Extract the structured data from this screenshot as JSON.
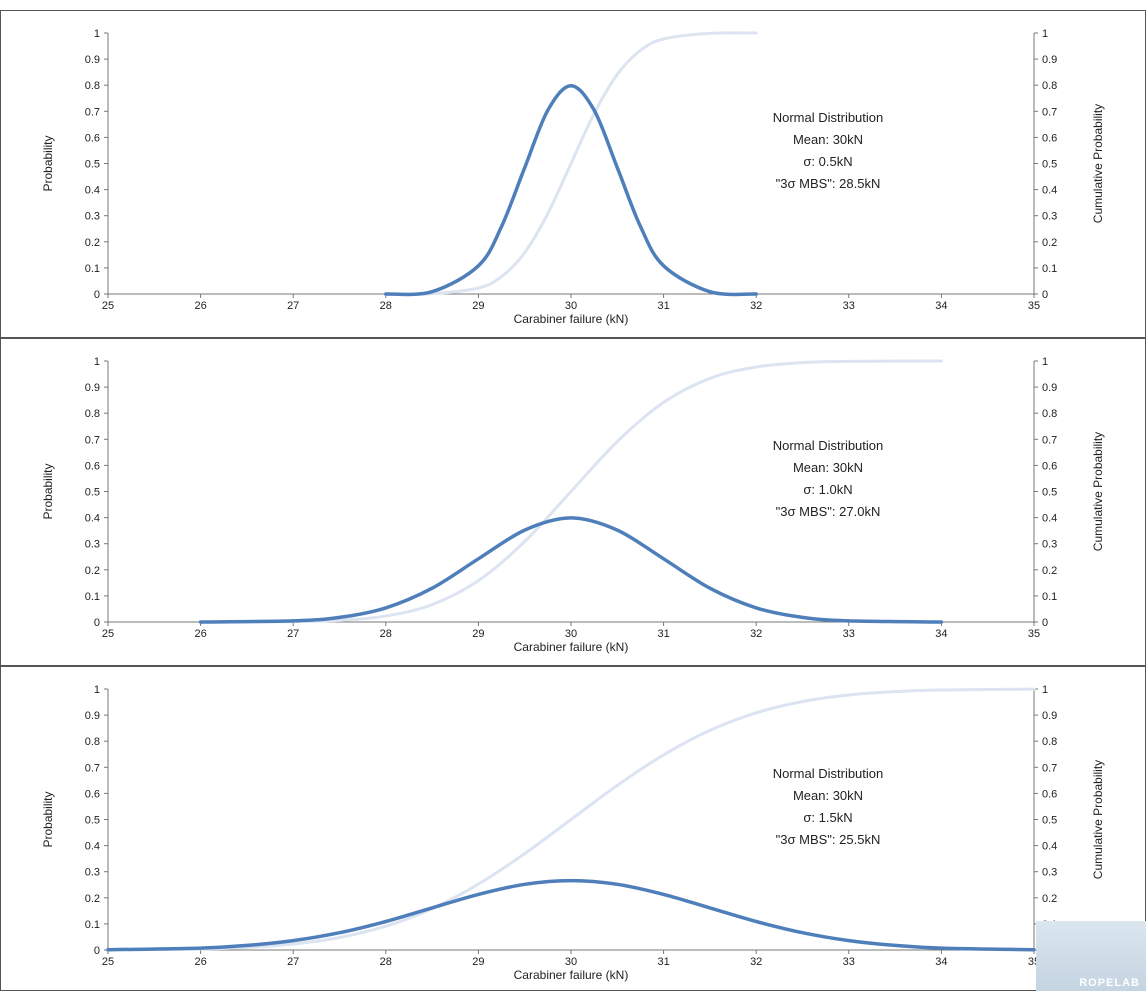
{
  "watermark": "ROPELAB",
  "chart_data": [
    {
      "type": "line",
      "xlabel": "Carabiner failure (kN)",
      "ylabel": "Probability",
      "y2label": "Cumulative Probability",
      "xlim": [
        25,
        35
      ],
      "ylim": [
        0,
        1
      ],
      "y2lim": [
        0,
        1
      ],
      "x_ticks": [
        "25",
        "26",
        "27",
        "28",
        "29",
        "30",
        "31",
        "32",
        "33",
        "34",
        "35"
      ],
      "y_ticks": [
        "0",
        "0.1",
        "0.2",
        "0.3",
        "0.4",
        "0.5",
        "0.6",
        "0.7",
        "0.8",
        "0.9",
        "1"
      ],
      "y2_ticks": [
        "0",
        "0.1",
        "0.2",
        "0.3",
        "0.4",
        "0.5",
        "0.6",
        "0.7",
        "0.8",
        "0.9",
        "1"
      ],
      "annotation": [
        "Normal Distribution",
        "Mean: 30kN",
        "σ: 0.5kN",
        "\"3σ MBS\": 28.5kN"
      ],
      "grid": false,
      "series": [
        {
          "role": "pdf",
          "axis": "left",
          "color": "#4f7fba",
          "x": [
            28,
            28.5,
            29,
            29.25,
            29.5,
            29.75,
            30,
            30.25,
            30.5,
            30.75,
            31,
            31.5,
            32
          ],
          "y": [
            0.0001,
            0.0089,
            0.108,
            0.259,
            0.484,
            0.704,
            0.798,
            0.704,
            0.484,
            0.259,
            0.108,
            0.0089,
            0.0001
          ]
        },
        {
          "role": "cdf",
          "axis": "right",
          "color": "#dbe4f0",
          "x": [
            28,
            28.5,
            29,
            29.25,
            29.5,
            29.75,
            30,
            30.25,
            30.5,
            30.75,
            31,
            31.5,
            32
          ],
          "y": [
            3e-05,
            0.00135,
            0.0228,
            0.0668,
            0.1587,
            0.3085,
            0.5,
            0.6915,
            0.8413,
            0.9332,
            0.9772,
            0.99865,
            0.99997
          ]
        }
      ]
    },
    {
      "type": "line",
      "xlabel": "Carabiner failure (kN)",
      "ylabel": "Probability",
      "y2label": "Cumulative Probability",
      "xlim": [
        25,
        35
      ],
      "ylim": [
        0,
        1
      ],
      "y2lim": [
        0,
        1
      ],
      "x_ticks": [
        "25",
        "26",
        "27",
        "28",
        "29",
        "30",
        "31",
        "32",
        "33",
        "34",
        "35"
      ],
      "y_ticks": [
        "0",
        "0.1",
        "0.2",
        "0.3",
        "0.4",
        "0.5",
        "0.6",
        "0.7",
        "0.8",
        "0.9",
        "1"
      ],
      "y2_ticks": [
        "0",
        "0.1",
        "0.2",
        "0.3",
        "0.4",
        "0.5",
        "0.6",
        "0.7",
        "0.8",
        "0.9",
        "1"
      ],
      "annotation": [
        "Normal Distribution",
        "Mean: 30kN",
        "σ: 1.0kN",
        "\"3σ MBS\": 27.0kN"
      ],
      "grid": false,
      "series": [
        {
          "role": "pdf",
          "axis": "left",
          "color": "#4f7fba",
          "x": [
            26,
            27,
            27.5,
            28,
            28.5,
            29,
            29.5,
            30,
            30.5,
            31,
            31.5,
            32,
            32.5,
            33,
            34
          ],
          "y": [
            0.0001,
            0.0044,
            0.0175,
            0.054,
            0.1295,
            0.242,
            0.352,
            0.399,
            0.352,
            0.242,
            0.1295,
            0.054,
            0.0175,
            0.0044,
            0.0001
          ]
        },
        {
          "role": "cdf",
          "axis": "right",
          "color": "#dbe4f0",
          "x": [
            26,
            27,
            27.5,
            28,
            28.5,
            29,
            29.5,
            30,
            30.5,
            31,
            31.5,
            32,
            32.5,
            33,
            34
          ],
          "y": [
            3e-05,
            0.00135,
            0.0062,
            0.0228,
            0.0668,
            0.1587,
            0.3085,
            0.5,
            0.6915,
            0.8413,
            0.9332,
            0.9772,
            0.9938,
            0.99865,
            0.99997
          ]
        }
      ]
    },
    {
      "type": "line",
      "xlabel": "Carabiner failure (kN)",
      "ylabel": "Probability",
      "y2label": "Cumulative Probability",
      "xlim": [
        25,
        35
      ],
      "ylim": [
        0,
        1
      ],
      "y2lim": [
        0,
        1
      ],
      "x_ticks": [
        "25",
        "26",
        "27",
        "28",
        "29",
        "30",
        "31",
        "32",
        "33",
        "34",
        "35"
      ],
      "y_ticks": [
        "0",
        "0.1",
        "0.2",
        "0.3",
        "0.4",
        "0.5",
        "0.6",
        "0.7",
        "0.8",
        "0.9",
        "1"
      ],
      "y2_ticks": [
        "0",
        "0.1",
        "0.2",
        "0.3",
        "0.4",
        "0.5",
        "0.6",
        "0.7",
        "0.8",
        "0.9",
        "1"
      ],
      "annotation": [
        "Normal Distribution",
        "Mean: 30kN",
        "σ: 1.5kN",
        "\"3σ MBS\": 25.5kN"
      ],
      "grid": false,
      "series": [
        {
          "role": "pdf",
          "axis": "left",
          "color": "#4f7fba",
          "x": [
            25,
            26,
            26.5,
            27,
            27.5,
            28,
            28.5,
            29,
            29.5,
            30,
            30.5,
            31,
            31.5,
            32,
            32.5,
            33,
            33.5,
            34,
            35
          ],
          "y": [
            0.001,
            0.0073,
            0.0176,
            0.036,
            0.0661,
            0.1093,
            0.1613,
            0.213,
            0.2516,
            0.266,
            0.2516,
            0.213,
            0.1613,
            0.1093,
            0.0661,
            0.036,
            0.0176,
            0.0073,
            0.001
          ]
        },
        {
          "role": "cdf",
          "axis": "right",
          "color": "#dbe4f0",
          "x": [
            25,
            26,
            26.5,
            27,
            27.5,
            28,
            28.5,
            29,
            29.5,
            30,
            30.5,
            31,
            31.5,
            32,
            32.5,
            33,
            33.5,
            34,
            35
          ],
          "y": [
            0.0005,
            0.0038,
            0.0098,
            0.0228,
            0.0478,
            0.0912,
            0.1587,
            0.2525,
            0.3694,
            0.5,
            0.6306,
            0.7475,
            0.8413,
            0.9088,
            0.9522,
            0.9772,
            0.9902,
            0.9962,
            0.9995
          ]
        }
      ]
    }
  ]
}
